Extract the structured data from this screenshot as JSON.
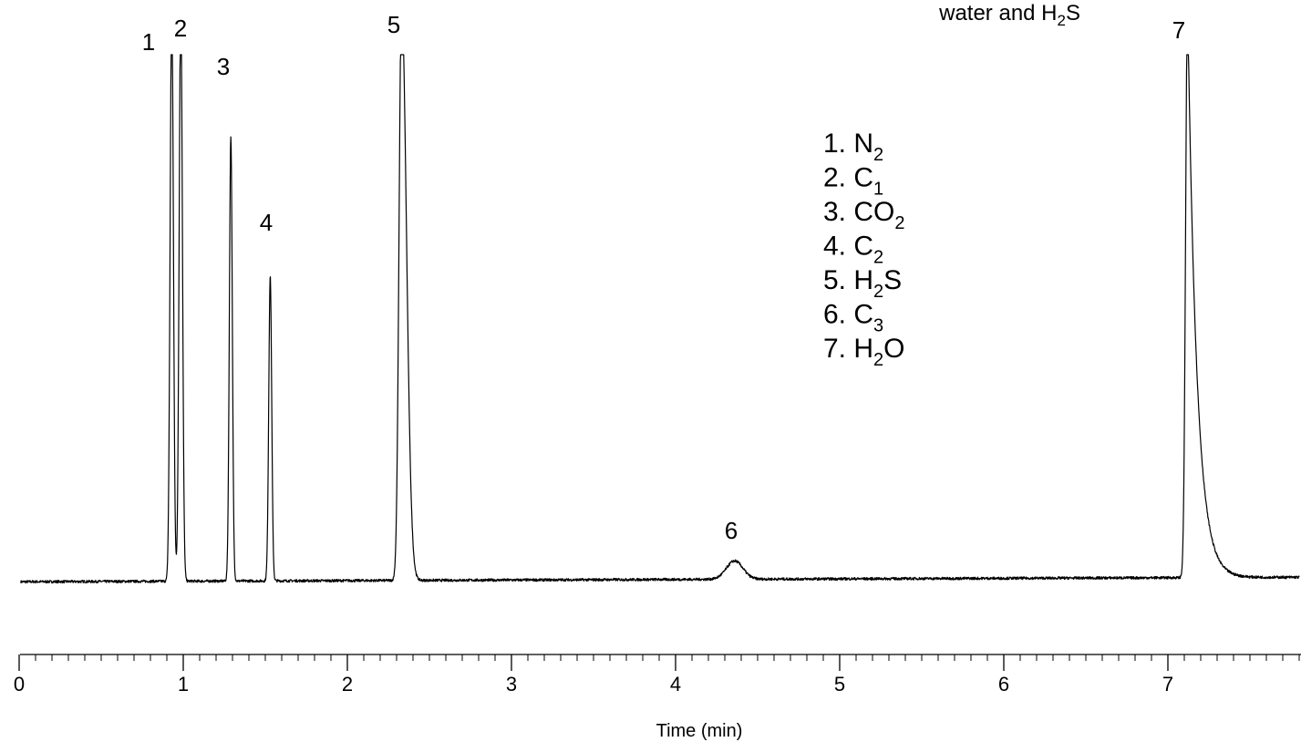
{
  "chart_data": {
    "type": "line",
    "title": "",
    "xlabel": "Time (min)",
    "ylabel": "",
    "xlim": [
      0,
      7.8
    ],
    "ylim": [
      0,
      100
    ],
    "grid": false,
    "x_ticks": [
      "0",
      "1",
      "2",
      "3",
      "4",
      "5",
      "6",
      "7"
    ],
    "baseline": 0,
    "series": [
      {
        "peaks": [
          {
            "label": "1",
            "rt": 0.93,
            "height": 120,
            "width": 0.01
          },
          {
            "label": "2",
            "rt": 0.985,
            "height": 120,
            "width": 0.01
          },
          {
            "label": "3",
            "rt": 1.29,
            "height": 92,
            "width": 0.009
          },
          {
            "label": "4",
            "rt": 1.53,
            "height": 63,
            "width": 0.009
          },
          {
            "label": "5",
            "rt": 2.33,
            "height": 120,
            "width": 0.025
          },
          {
            "label": "6",
            "rt": 4.36,
            "height": 3.8,
            "width": 0.05
          },
          {
            "label": "7",
            "rt": 7.12,
            "height": 120,
            "width": 0.03
          }
        ]
      }
    ],
    "legend": [
      {
        "num": "1. ",
        "base": "N",
        "sub": "2",
        "after": ""
      },
      {
        "num": "2. ",
        "base": "C",
        "sub": "1",
        "after": ""
      },
      {
        "num": "3. ",
        "base": "CO",
        "sub": "2",
        "after": ""
      },
      {
        "num": "4. ",
        "base": "C",
        "sub": "2",
        "after": ""
      },
      {
        "num": "5. ",
        "base": "H",
        "sub": "2",
        "after": "S"
      },
      {
        "num": "6. ",
        "base": "C",
        "sub": "3",
        "after": ""
      },
      {
        "num": "7. ",
        "base": "H",
        "sub": "2",
        "after": "O"
      }
    ],
    "annotation": {
      "before": "water and H",
      "sub": "2",
      "after": "S"
    }
  }
}
